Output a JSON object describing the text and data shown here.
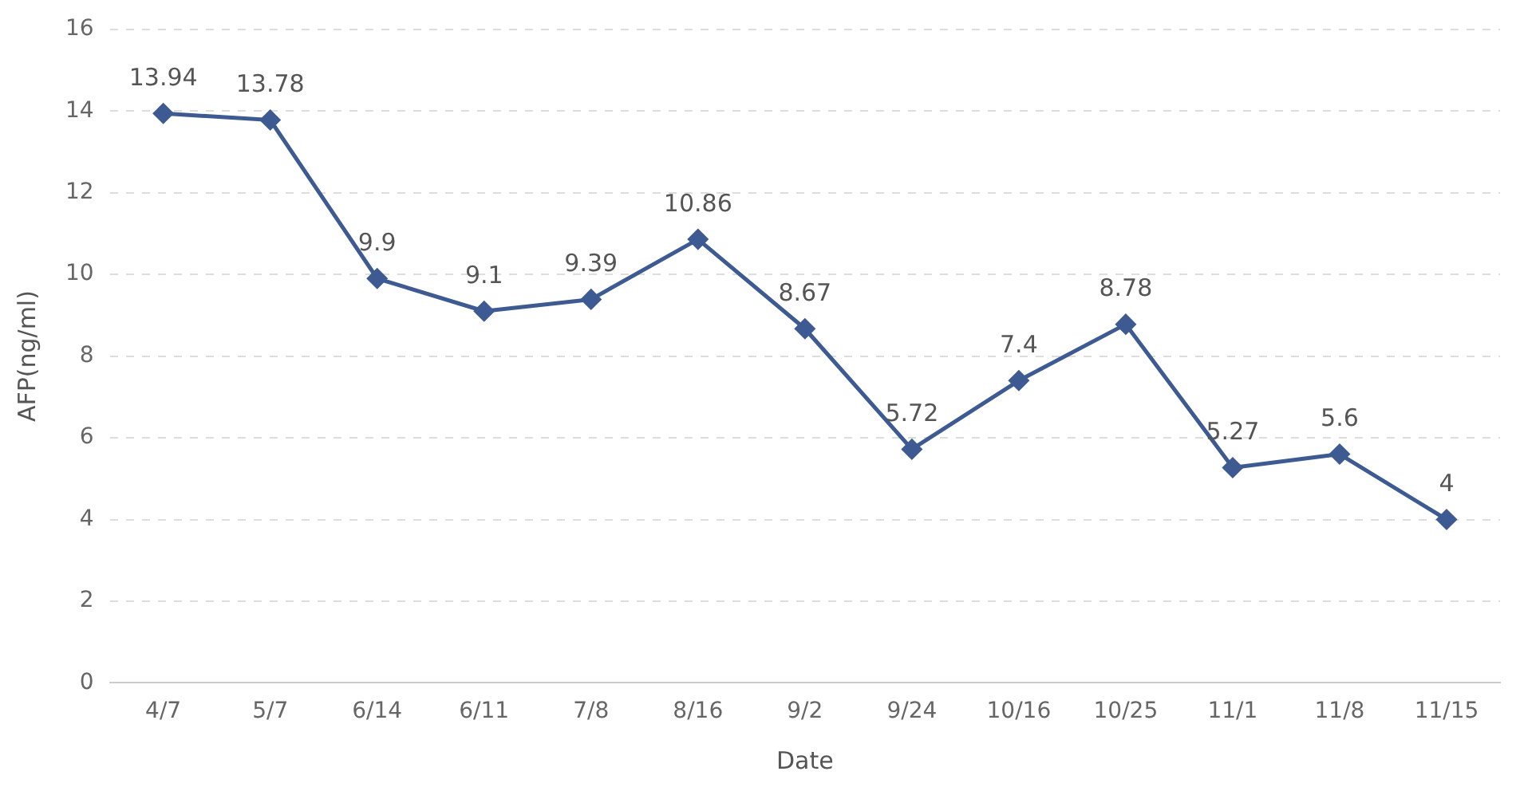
{
  "chart_data": {
    "type": "line",
    "xlabel": "Date",
    "ylabel": "AFP(ng/ml)",
    "categories": [
      "4/7",
      "5/7",
      "6/14",
      "6/11",
      "7/8",
      "8/16",
      "9/2",
      "9/24",
      "10/16",
      "10/25",
      "11/1",
      "11/8",
      "11/15"
    ],
    "series": [
      {
        "color": "#3d5a92",
        "values": [
          13.94,
          13.78,
          9.9,
          9.1,
          9.39,
          10.86,
          8.67,
          5.72,
          7.4,
          8.78,
          5.27,
          5.6,
          4
        ]
      }
    ],
    "ylim": [
      0,
      16
    ],
    "yticks": [
      0,
      2,
      4,
      6,
      8,
      10,
      12,
      14,
      16
    ],
    "grid": "y",
    "marker": "diamond",
    "line_style": "solid",
    "data_labels": true,
    "legend": false
  }
}
